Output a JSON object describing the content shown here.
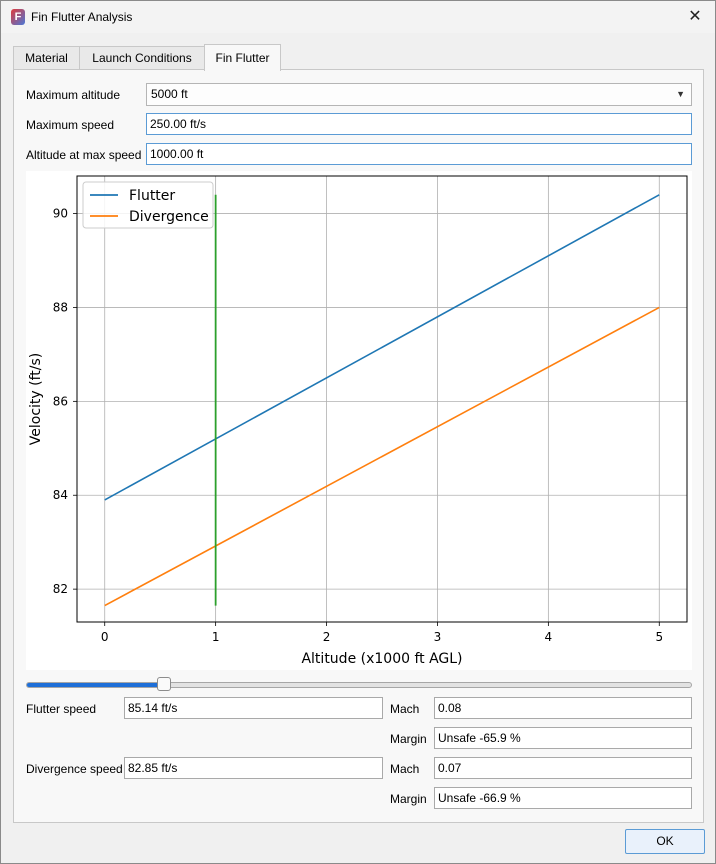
{
  "window": {
    "title": "Fin Flutter Analysis"
  },
  "tabs": [
    {
      "label": "Material",
      "active": false
    },
    {
      "label": "Launch Conditions",
      "active": false
    },
    {
      "label": "Fin Flutter",
      "active": true
    }
  ],
  "form": {
    "max_altitude_label": "Maximum altitude",
    "max_altitude_value": "5000 ft",
    "max_speed_label": "Maximum speed",
    "max_speed_value": "250.00 ft/s",
    "alt_at_max_speed_label": "Altitude at max speed",
    "alt_at_max_speed_value": "1000.00 ft"
  },
  "chart_data": {
    "type": "line",
    "xlabel": "Altitude (x1000 ft AGL)",
    "ylabel": "Velocity (ft/s)",
    "xlim": [
      -0.25,
      5.25
    ],
    "ylim": [
      81.3,
      90.8
    ],
    "xticks": [
      "0",
      "1",
      "2",
      "3",
      "4",
      "5"
    ],
    "yticks": [
      "82",
      "84",
      "86",
      "88",
      "90"
    ],
    "grid": true,
    "legend": "top-left",
    "series": [
      {
        "name": "Flutter",
        "color": "#1f77b4",
        "x": [
          0,
          5
        ],
        "y": [
          83.9,
          90.4
        ]
      },
      {
        "name": "Divergence",
        "color": "#ff7f0e",
        "x": [
          0,
          5
        ],
        "y": [
          81.65,
          88.0
        ]
      }
    ],
    "marker_line": {
      "color": "#2ca02c",
      "x": 1,
      "y": [
        81.65,
        90.4
      ]
    }
  },
  "slider": {
    "value_fraction": 0.2
  },
  "results": {
    "flutter_speed_label": "Flutter speed",
    "flutter_speed_value": "85.14 ft/s",
    "flutter_mach_label": "Mach",
    "flutter_mach_value": "0.08",
    "flutter_margin_label": "Margin",
    "flutter_margin_value": "Unsafe -65.9 %",
    "divergence_speed_label": "Divergence speed",
    "divergence_speed_value": "82.85 ft/s",
    "divergence_mach_label": "Mach",
    "divergence_mach_value": "0.07",
    "divergence_margin_label": "Margin",
    "divergence_margin_value": "Unsafe -66.9 %"
  },
  "buttons": {
    "ok_label": "OK"
  }
}
